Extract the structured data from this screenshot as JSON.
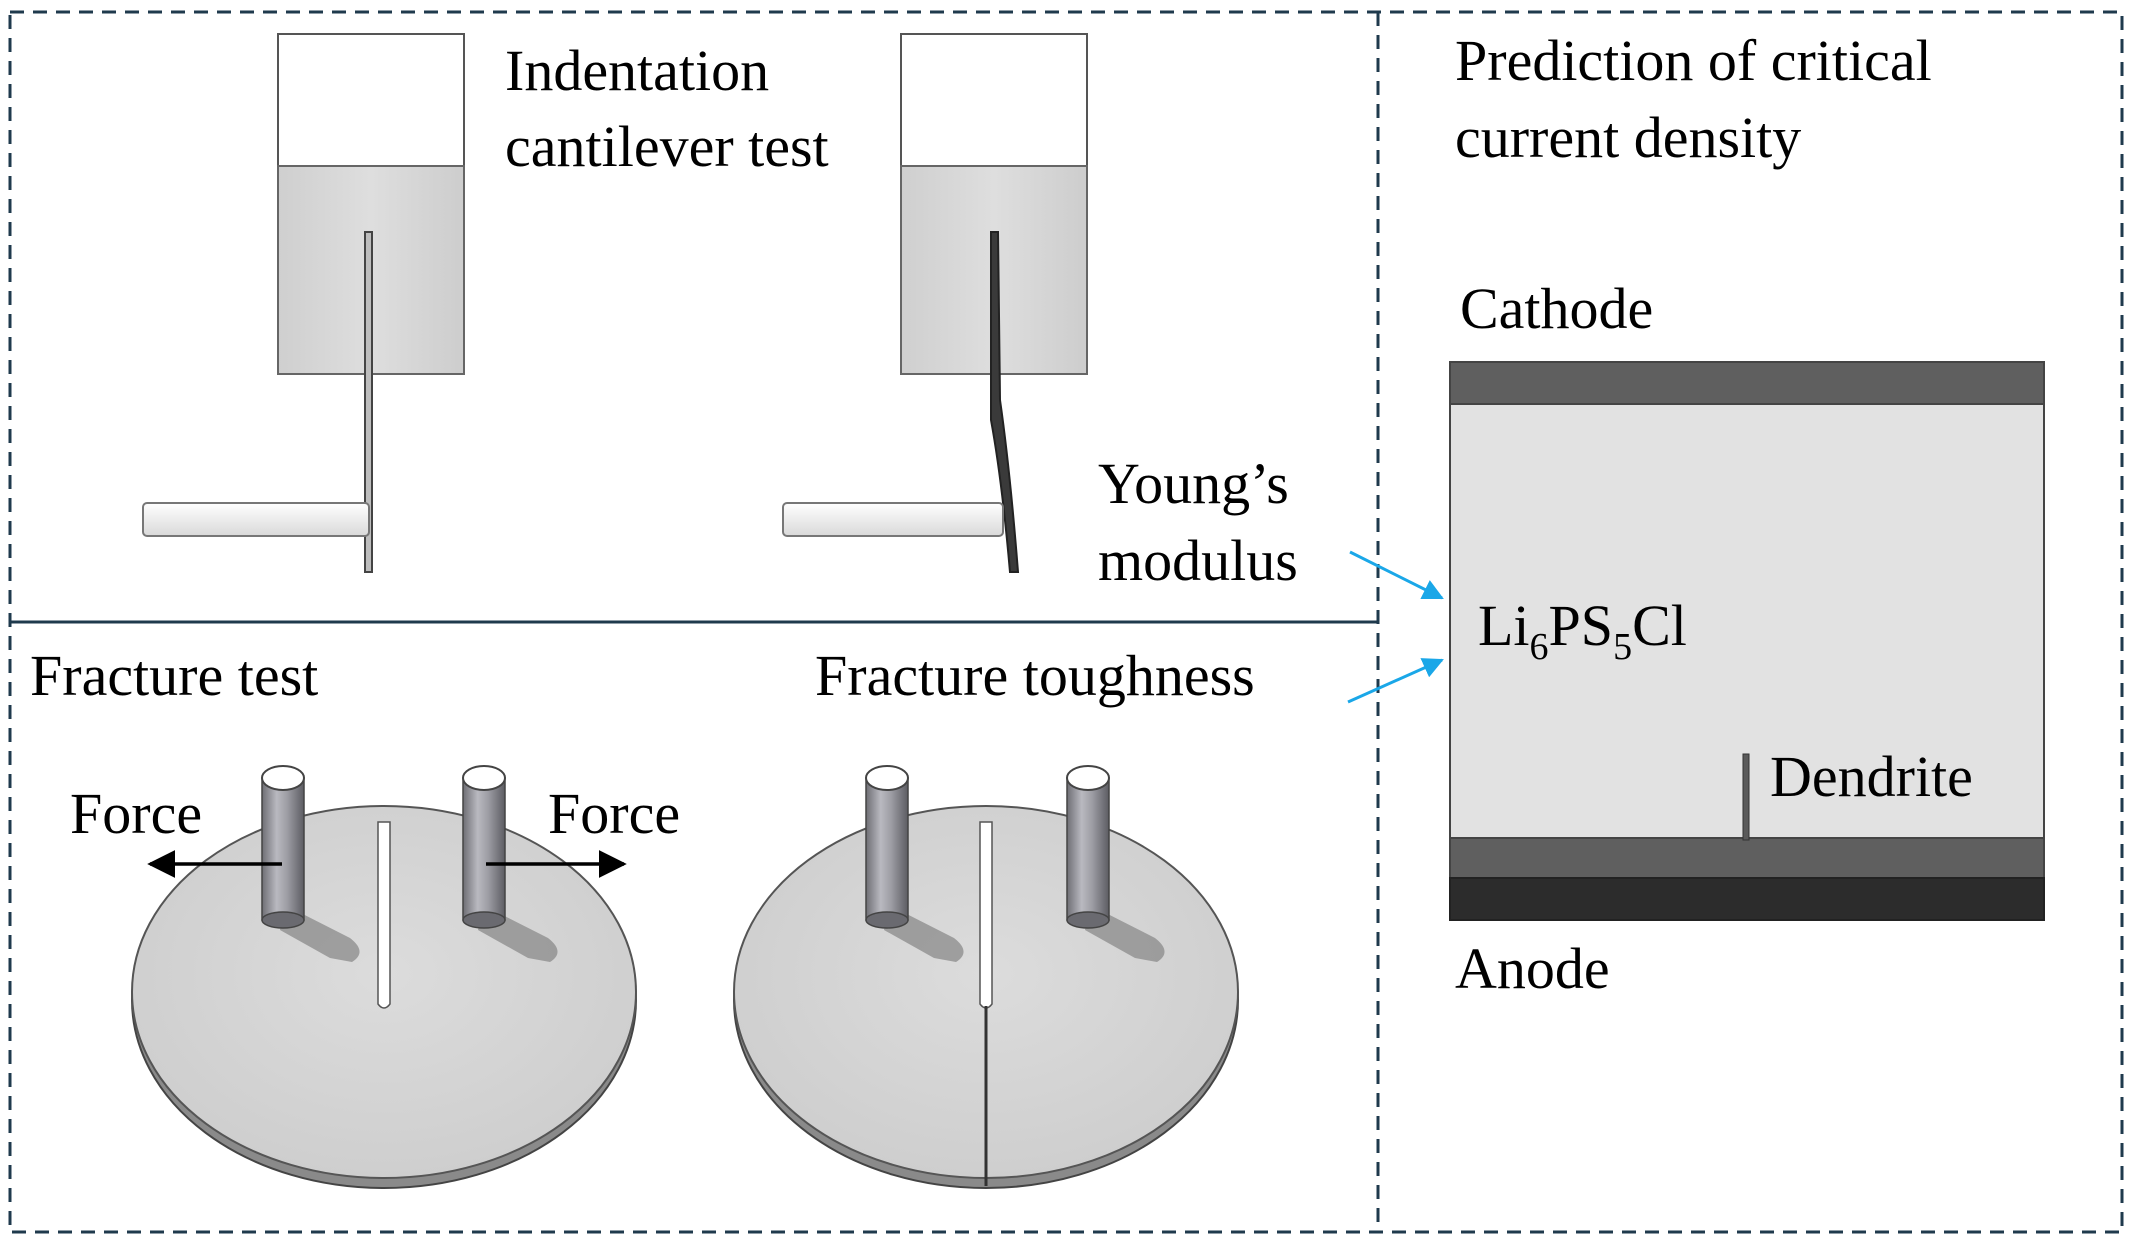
{
  "panels": {
    "indentation": {
      "title_line1": "Indentation",
      "title_line2": "cantilever test"
    },
    "fracture": {
      "title": "Fracture test",
      "force_left": "Force",
      "force_right": "Force"
    },
    "prediction": {
      "title_line1": "Prediction of critical",
      "title_line2": "current density",
      "cathode": "Cathode",
      "anode": "Anode",
      "electrolyte": {
        "p1": "Li",
        "s1": "6",
        "p2": "PS",
        "s2": "5",
        "p3": "Cl"
      },
      "dendrite": "Dendrite"
    }
  },
  "links": {
    "youngs_line1": "Young’s",
    "youngs_line2": "modulus",
    "toughness": "Fracture toughness"
  },
  "colors": {
    "border": "#1f3a4d",
    "arrow": "#1aa7e8",
    "electrode": "#5f5f5f",
    "anode_base": "#2c2c2c",
    "electrolyte": "#e2e2e2",
    "sample": "#d6d6d6"
  }
}
